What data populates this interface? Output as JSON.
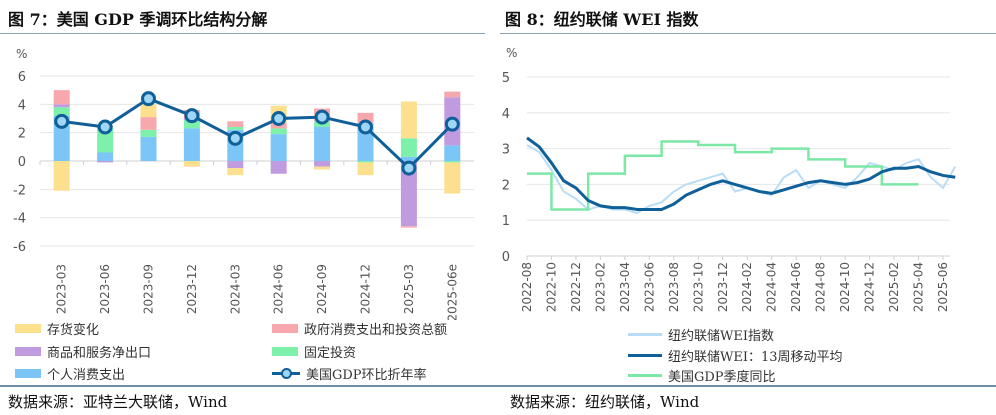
{
  "left": {
    "title": "图 7：美国 GDP 季调环比结构分解",
    "source": "数据来源：亚特兰大联储，Wind"
  },
  "right": {
    "title": "图 8：纽约联储 WEI 指数",
    "source": "数据来源：纽约联储，Wind"
  },
  "chart_data": [
    {
      "type": "bar",
      "stacked": true,
      "ylabel": "%",
      "ylim": [
        -6,
        6
      ],
      "yticks": [
        6,
        4,
        2,
        0,
        -2,
        -4,
        -6
      ],
      "grid": true,
      "legend": "bottom",
      "categories": [
        "2023-03",
        "2023-06",
        "2023-09",
        "2023-12",
        "2024-03",
        "2024-06",
        "2024-09",
        "2024-12",
        "2025-03",
        "2025-06e"
      ],
      "series": [
        {
          "name": "个人消费支出",
          "color": "#7cc6f7",
          "values": [
            3.2,
            0.6,
            1.7,
            2.3,
            2.2,
            1.9,
            2.4,
            2.7,
            0.3,
            1.1
          ]
        },
        {
          "name": "固定投资",
          "color": "#7df0a9",
          "values": [
            0.6,
            1.8,
            0.5,
            0.6,
            0.2,
            0.4,
            0.4,
            -0.1,
            1.3,
            -0.1
          ]
        },
        {
          "name": "商品和服务净出口",
          "color": "#c19be0",
          "values": [
            0.2,
            -0.1,
            0.0,
            0.1,
            -0.5,
            -0.9,
            -0.4,
            0.0,
            -4.6,
            3.4
          ]
        },
        {
          "name": "政府消费支出和投资总额",
          "color": "#f7a8ad",
          "values": [
            1.0,
            0.1,
            0.9,
            0.6,
            0.4,
            0.4,
            0.9,
            0.7,
            -0.1,
            0.4
          ]
        },
        {
          "name": "存货变化",
          "color": "#fde08e",
          "values": [
            -2.1,
            0.0,
            0.9,
            -0.4,
            -0.5,
            1.2,
            -0.2,
            -0.9,
            2.6,
            -2.2
          ]
        }
      ],
      "line": {
        "name": "美国GDP环比折年率",
        "color": "#0f5f98",
        "values": [
          2.8,
          2.4,
          4.4,
          3.2,
          1.6,
          3.0,
          3.1,
          2.4,
          -0.5,
          2.6
        ]
      }
    },
    {
      "type": "line",
      "ylabel": "%",
      "ylim": [
        0,
        5
      ],
      "yticks": [
        5,
        4,
        3,
        2,
        1,
        0
      ],
      "grid": true,
      "legend": "bottom",
      "xticks": [
        "2022-08",
        "2022-10",
        "2022-12",
        "2023-02",
        "2023-04",
        "2023-06",
        "2023-08",
        "2023-10",
        "2023-12",
        "2024-02",
        "2024-04",
        "2024-06",
        "2024-08",
        "2024-10",
        "2024-12",
        "2025-02",
        "2025-04",
        "2025-06"
      ],
      "x": [
        "2022-08",
        "2022-09",
        "2022-10",
        "2022-11",
        "2022-12",
        "2023-01",
        "2023-02",
        "2023-03",
        "2023-04",
        "2023-05",
        "2023-06",
        "2023-07",
        "2023-08",
        "2023-09",
        "2023-10",
        "2023-11",
        "2023-12",
        "2024-01",
        "2024-02",
        "2024-03",
        "2024-04",
        "2024-05",
        "2024-06",
        "2024-07",
        "2024-08",
        "2024-09",
        "2024-10",
        "2024-11",
        "2024-12",
        "2025-01",
        "2025-02",
        "2025-03",
        "2025-04",
        "2025-05",
        "2025-06",
        "2025-07"
      ],
      "series": [
        {
          "name": "纽约联储WEI指数",
          "color": "#b9ddf6",
          "values": [
            3.1,
            2.9,
            2.4,
            1.8,
            1.6,
            1.3,
            1.4,
            1.3,
            1.3,
            1.2,
            1.4,
            1.5,
            1.8,
            2.0,
            2.1,
            2.2,
            2.3,
            1.8,
            1.9,
            1.8,
            1.7,
            2.2,
            2.4,
            1.9,
            2.1,
            2.0,
            1.9,
            2.2,
            2.6,
            2.5,
            2.4,
            2.6,
            2.7,
            2.2,
            1.9,
            2.5
          ]
        },
        {
          "name": "纽约联储WEI：13周移动平均",
          "color": "#0f5f98",
          "values": [
            3.3,
            3.05,
            2.6,
            2.1,
            1.9,
            1.55,
            1.4,
            1.35,
            1.35,
            1.3,
            1.3,
            1.3,
            1.45,
            1.7,
            1.85,
            2.0,
            2.1,
            2.0,
            1.9,
            1.8,
            1.75,
            1.85,
            1.95,
            2.05,
            2.1,
            2.05,
            2.0,
            2.05,
            2.15,
            2.35,
            2.45,
            2.45,
            2.5,
            2.35,
            2.25,
            2.2
          ]
        },
        {
          "name": "美国GDP季度同比",
          "color": "#7de8a6",
          "values": [
            2.3,
            2.3,
            1.3,
            1.3,
            1.3,
            2.3,
            2.3,
            2.3,
            2.8,
            2.8,
            2.8,
            3.2,
            3.2,
            3.2,
            3.1,
            3.1,
            3.1,
            2.9,
            2.9,
            2.9,
            3.0,
            3.0,
            3.0,
            2.7,
            2.7,
            2.7,
            2.5,
            2.5,
            2.5,
            2.0,
            2.0,
            2.0,
            null,
            null,
            null,
            null
          ]
        }
      ]
    }
  ]
}
